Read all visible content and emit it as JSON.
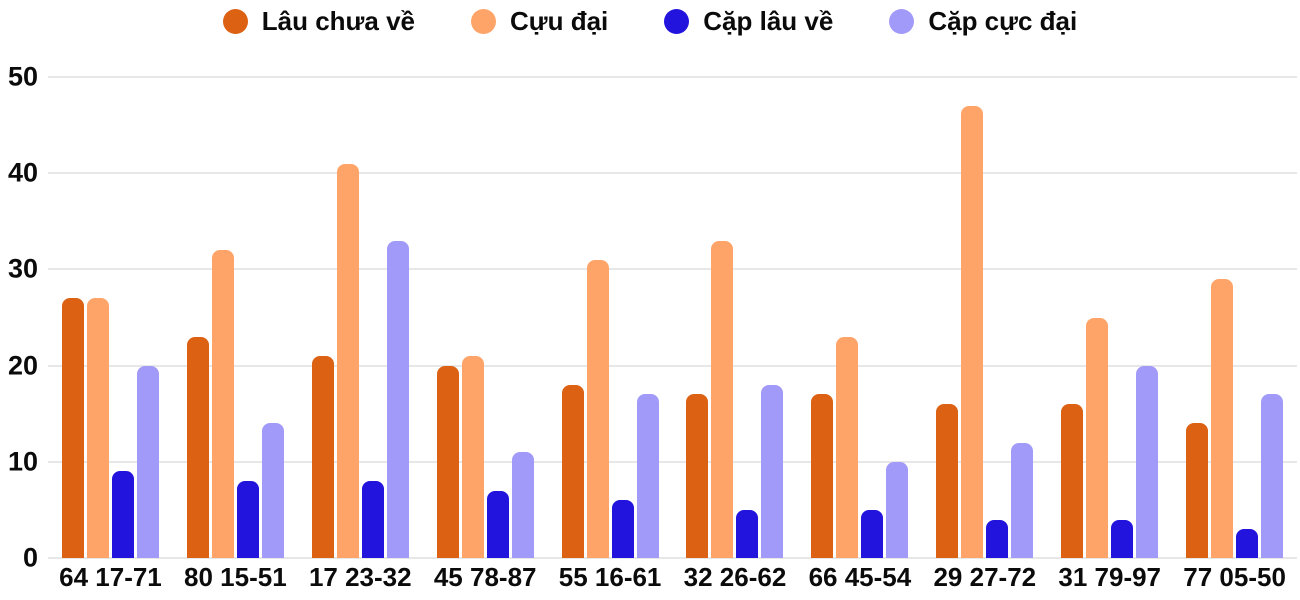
{
  "chart_data": {
    "type": "bar",
    "title": "",
    "categories": [
      "64 17-71",
      "80 15-51",
      "17 23-32",
      "45 78-87",
      "55 16-61",
      "32 26-62",
      "66 45-54",
      "29 27-72",
      "31 79-97",
      "77 05-50"
    ],
    "series": [
      {
        "name": "Lâu chưa về",
        "color": "#DC6112",
        "values": [
          27,
          23,
          21,
          20,
          18,
          17,
          17,
          16,
          16,
          14
        ]
      },
      {
        "name": "Cựu đại",
        "color": "#FFA469",
        "values": [
          27,
          32,
          41,
          21,
          31,
          33,
          23,
          47,
          25,
          29
        ]
      },
      {
        "name": "Cặp lâu về",
        "color": "#2213DD",
        "values": [
          9,
          8,
          8,
          7,
          6,
          5,
          5,
          4,
          4,
          3
        ]
      },
      {
        "name": "Cặp cực đại",
        "color": "#A29AF8",
        "values": [
          20,
          14,
          33,
          11,
          17,
          18,
          10,
          12,
          20,
          17
        ]
      }
    ],
    "xlabel": "",
    "ylabel": "",
    "ylim": [
      0,
      50
    ],
    "yticks": [
      0,
      10,
      20,
      30,
      40,
      50
    ],
    "grid": true,
    "legend_position": "top",
    "background_color": "#ffffff",
    "gridline_color": "#e7e7e7",
    "label_color": "#0b0b0b"
  }
}
